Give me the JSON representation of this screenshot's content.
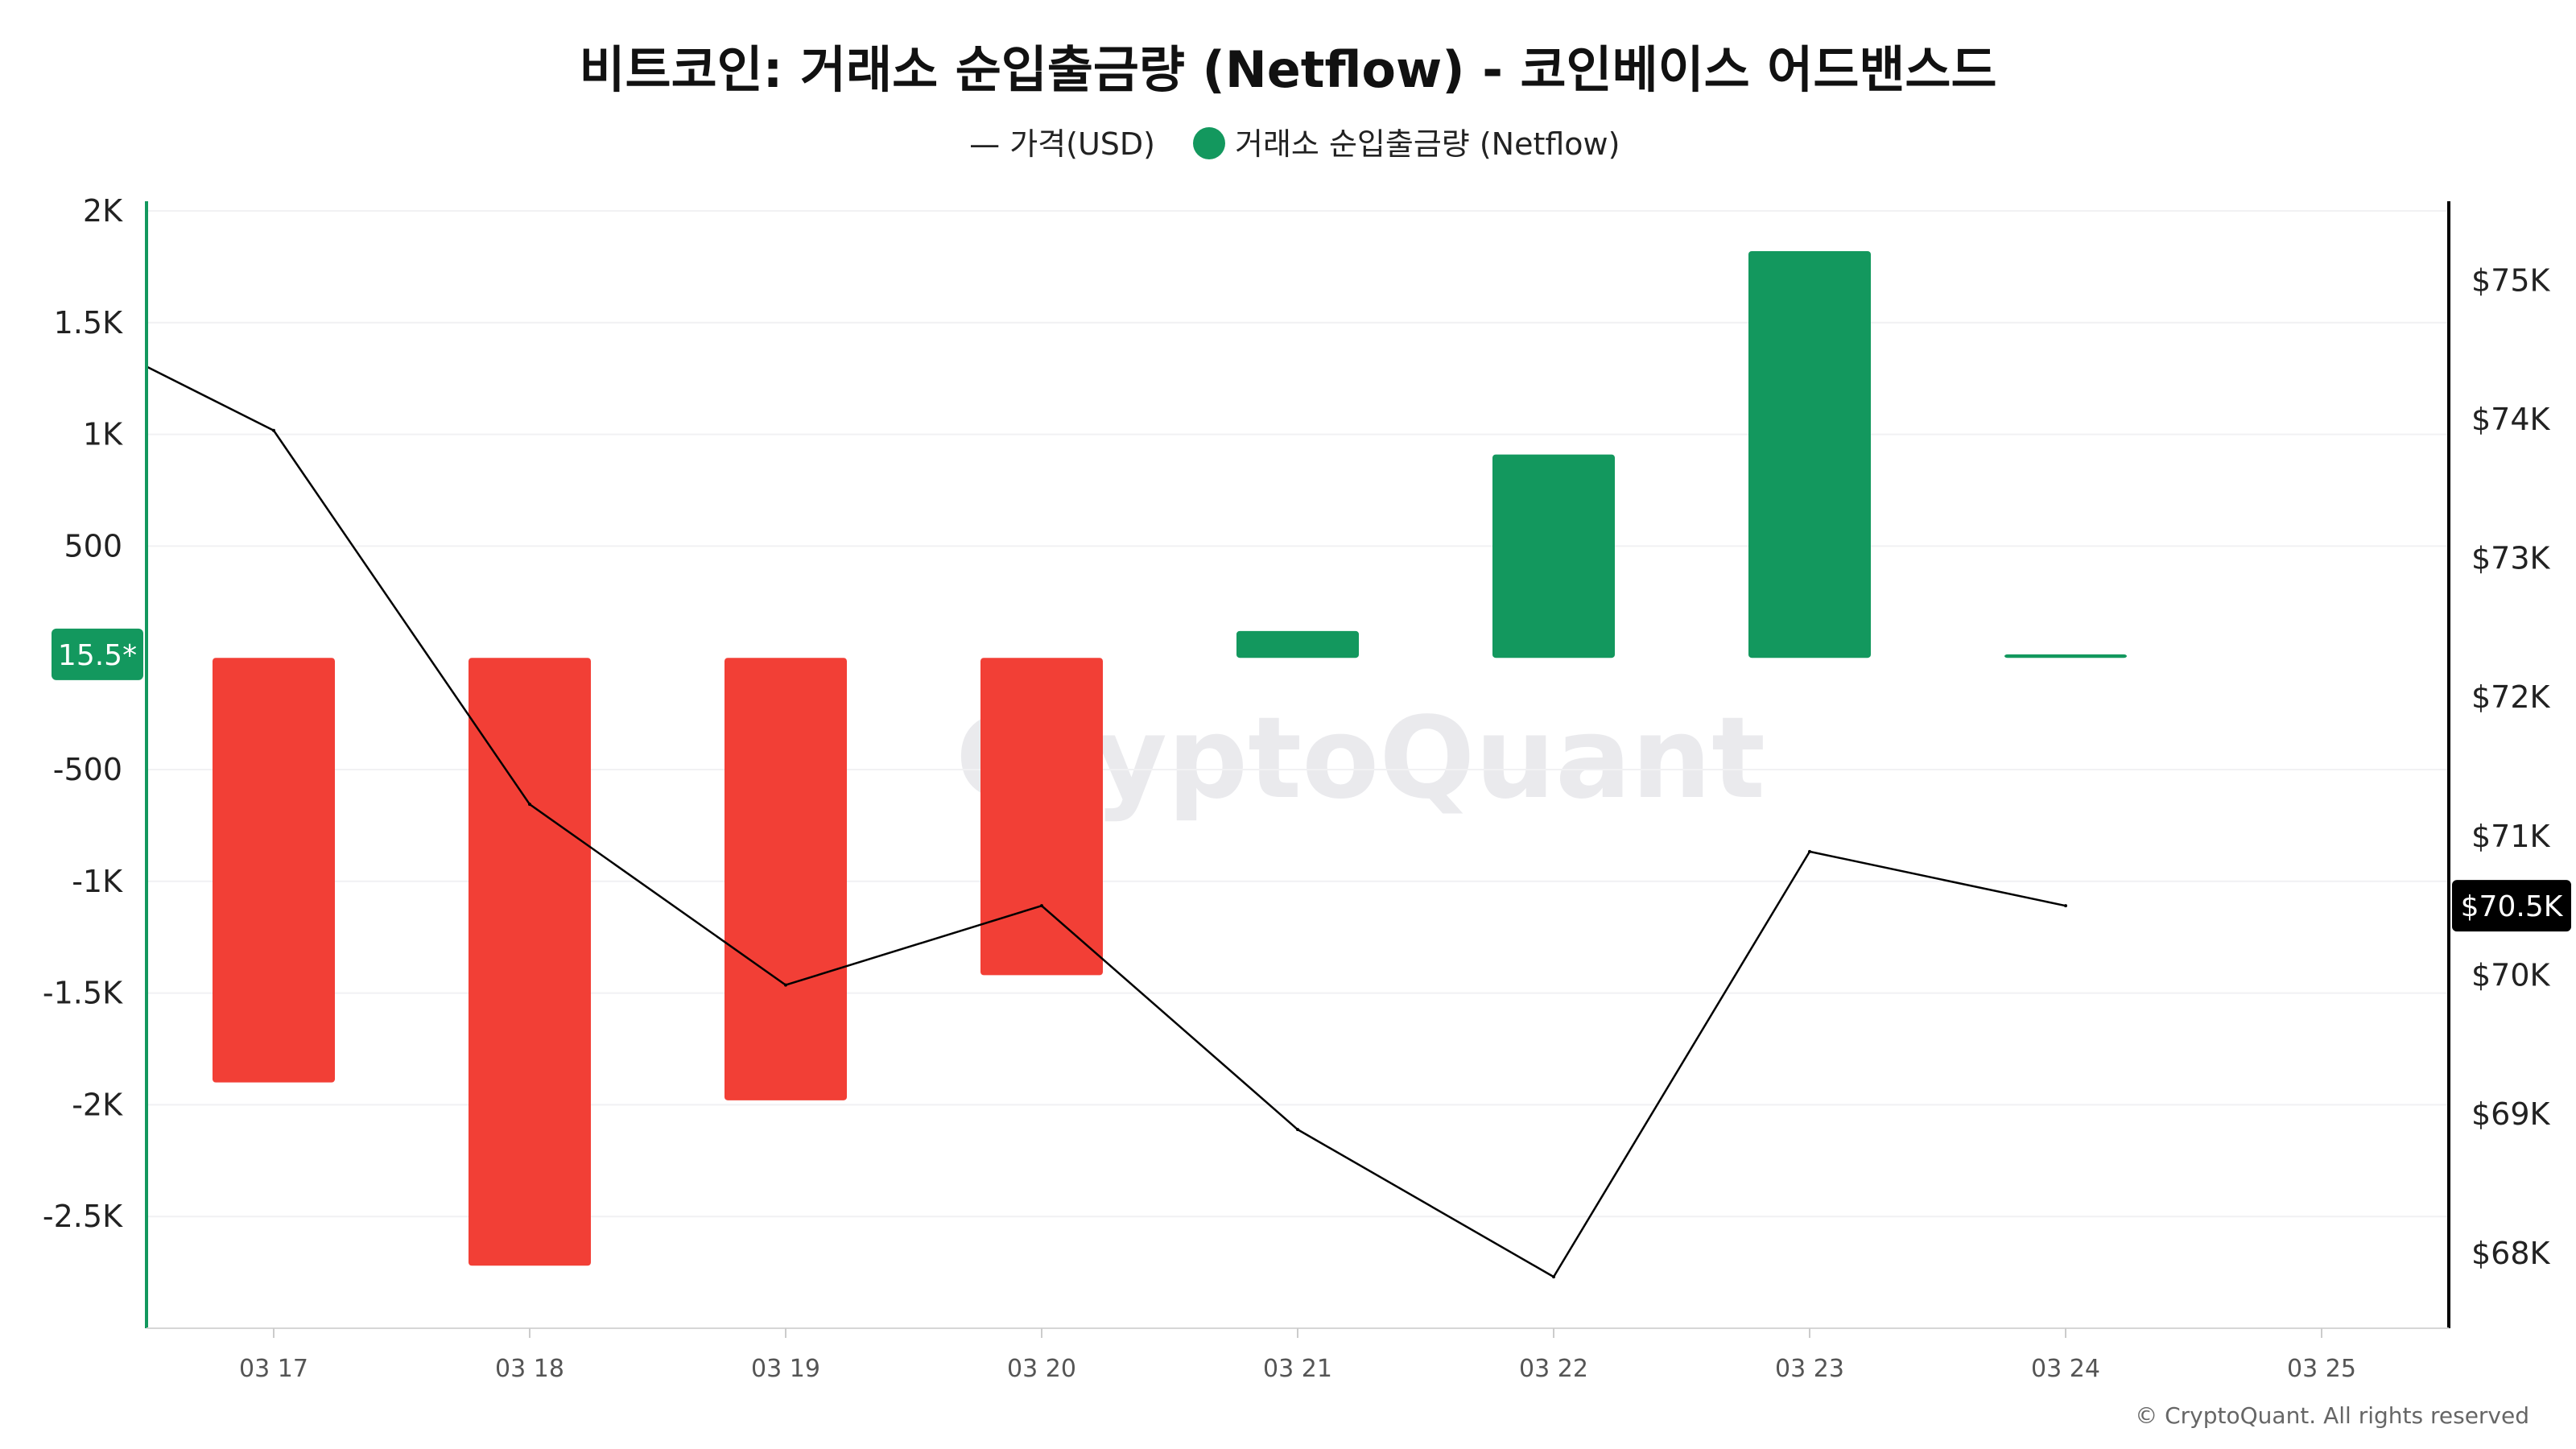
{
  "chart_data": {
    "type": "bar",
    "title": "비트코인: 거래소 순입출금량 (Netflow) - 코인베이스 어드밴스드",
    "legend": [
      {
        "label": "— 가격(USD)",
        "type": "line",
        "color": "#000000"
      },
      {
        "label": "거래소 순입출금량 (Netflow)",
        "type": "dot",
        "color": "#13985e"
      }
    ],
    "categories": [
      "03 17",
      "03 18",
      "03 19",
      "03 20",
      "03 21",
      "03 22",
      "03 23",
      "03 24",
      "03 25"
    ],
    "series": [
      {
        "name": "거래소 순입출금량 (Netflow)",
        "type": "bar",
        "axis": "left",
        "values": [
          -1900,
          -2720,
          -1980,
          -1420,
          120,
          910,
          1820,
          15.5,
          null
        ]
      },
      {
        "name": "가격(USD)",
        "type": "line",
        "axis": "right",
        "color": "#000000",
        "start_value": 74380,
        "values": [
          73920,
          71230,
          69930,
          70500,
          68890,
          67830,
          70890,
          70500,
          null
        ]
      }
    ],
    "left_axis": {
      "ylim": [
        -3000,
        2000
      ],
      "ticks": [
        {
          "value": 2000,
          "label": "2K"
        },
        {
          "value": 1500,
          "label": "1.5K"
        },
        {
          "value": 1000,
          "label": "1K"
        },
        {
          "value": 500,
          "label": "500"
        },
        {
          "value": -500,
          "label": "-500"
        },
        {
          "value": -1000,
          "label": "-1K"
        },
        {
          "value": -1500,
          "label": "-1.5K"
        },
        {
          "value": -2000,
          "label": "-2K"
        },
        {
          "value": -2500,
          "label": "-2.5K"
        }
      ],
      "badge": {
        "value": 15.5,
        "label": "15.5*",
        "color": "#13985e"
      }
    },
    "right_axis": {
      "ylim": [
        67460,
        75500
      ],
      "ticks": [
        {
          "value": 75000,
          "label": "$75K"
        },
        {
          "value": 74000,
          "label": "$74K"
        },
        {
          "value": 73000,
          "label": "$73K"
        },
        {
          "value": 72000,
          "label": "$72K"
        },
        {
          "value": 71000,
          "label": "$71K"
        },
        {
          "value": 70000,
          "label": "$70K"
        },
        {
          "value": 69000,
          "label": "$69K"
        },
        {
          "value": 68000,
          "label": "$68K"
        }
      ],
      "badge": {
        "value": 70500,
        "label": "$70.5K",
        "color": "#000000"
      }
    },
    "colors": {
      "positive": "#13985e",
      "negative": "#f23f36",
      "price": "#000000"
    },
    "grid": true,
    "legend_position": "top-center"
  },
  "watermark": "CryptoQuant",
  "copyright": "© CryptoQuant. All rights reserved"
}
